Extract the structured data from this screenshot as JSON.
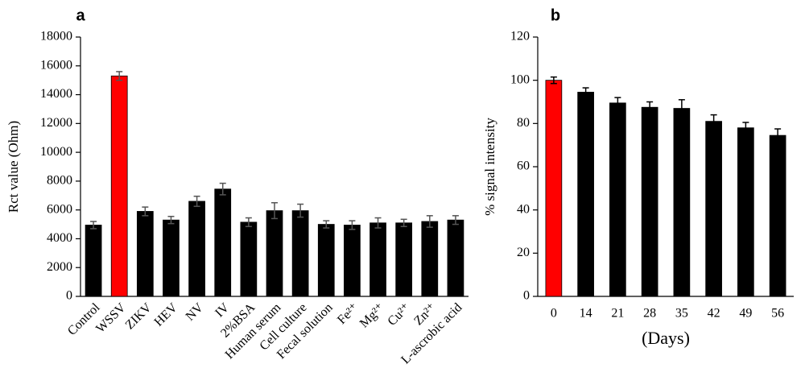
{
  "chart_data": [
    {
      "type": "bar",
      "title": "a",
      "y_label": "Rct value (Ohm)",
      "categories": [
        "Control",
        "WSSV",
        "ZIKV",
        "HEV",
        "NV",
        "IV",
        "2%BSA",
        "Human serum",
        "Cell culture",
        "Fecal solution",
        "Fe²⁺",
        "Mg²⁺",
        "Cu²⁺",
        "Zn²⁺",
        "L-ascrobic acid"
      ],
      "values": [
        4950,
        15300,
        5900,
        5300,
        6600,
        7450,
        5150,
        5950,
        5950,
        5000,
        4950,
        5100,
        5100,
        5200,
        5300
      ],
      "errors": [
        250,
        300,
        300,
        250,
        350,
        400,
        300,
        550,
        450,
        250,
        300,
        350,
        250,
        400,
        300
      ],
      "colors": [
        "#000000",
        "#ff0000",
        "#000000",
        "#000000",
        "#000000",
        "#000000",
        "#000000",
        "#000000",
        "#000000",
        "#000000",
        "#000000",
        "#000000",
        "#000000",
        "#000000",
        "#000000"
      ],
      "error_color": "#555555",
      "ylim": [
        0,
        18000
      ],
      "yticks": [
        0,
        2000,
        4000,
        6000,
        8000,
        10000,
        12000,
        14000,
        16000,
        18000
      ]
    },
    {
      "type": "bar",
      "title": "b",
      "y_label": "% signal intensity",
      "x_label": "(Days)",
      "categories": [
        "0",
        "14",
        "21",
        "28",
        "35",
        "42",
        "49",
        "56"
      ],
      "values": [
        100,
        94.5,
        89.5,
        87.5,
        87,
        81,
        78,
        74.5
      ],
      "errors": [
        1.5,
        2,
        2.5,
        2.5,
        4,
        3,
        2.5,
        3
      ],
      "colors": [
        "#ff0000",
        "#000000",
        "#000000",
        "#000000",
        "#000000",
        "#000000",
        "#000000",
        "#000000"
      ],
      "error_color": "#000000",
      "ylim": [
        0,
        120
      ],
      "yticks": [
        0,
        20,
        40,
        60,
        80,
        100,
        120
      ]
    }
  ]
}
